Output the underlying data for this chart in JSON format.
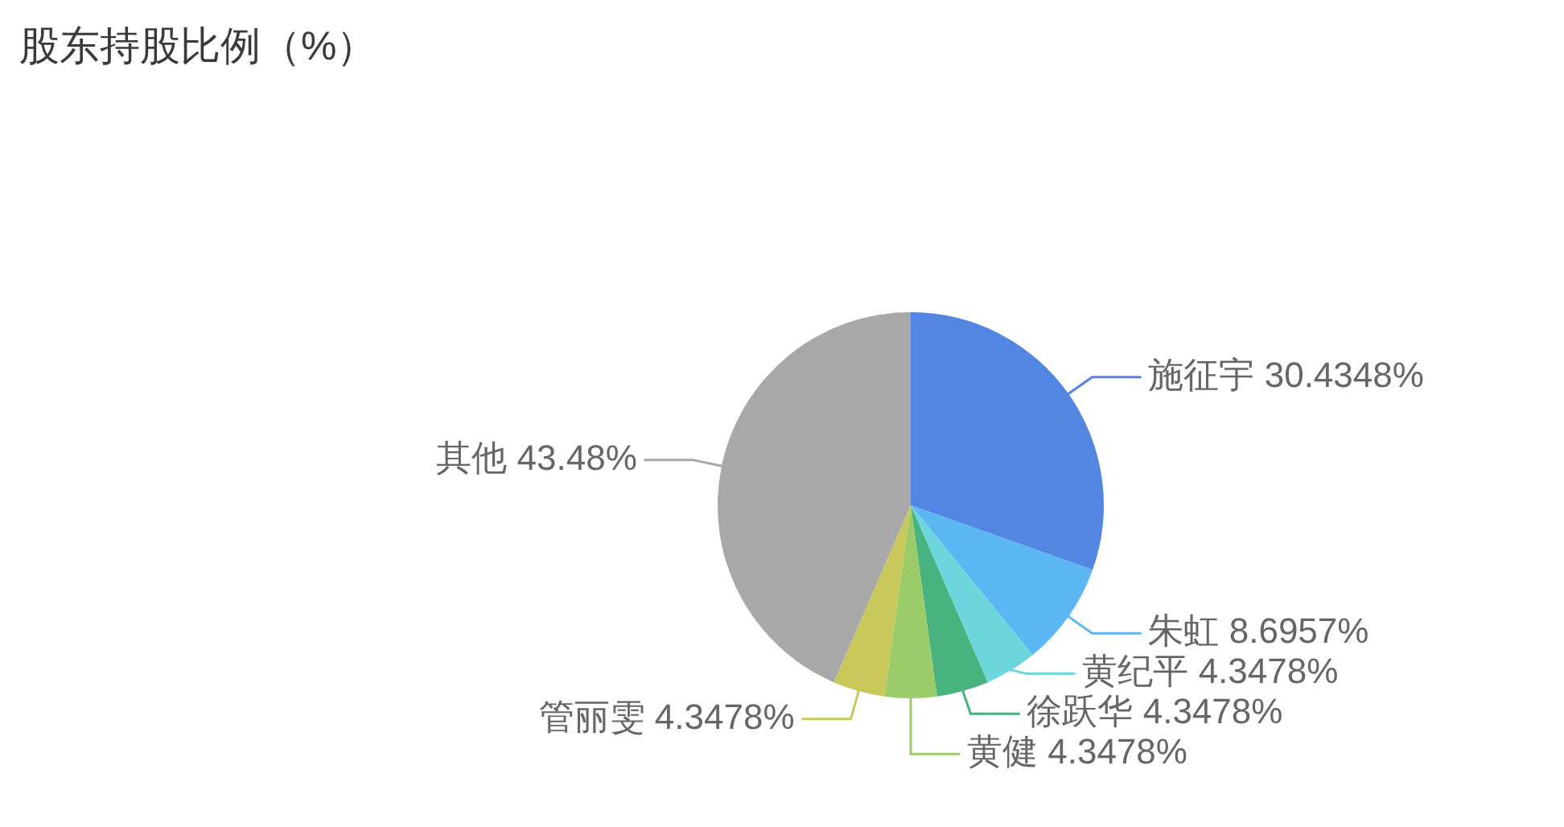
{
  "chart_data": {
    "type": "pie",
    "title": "股东持股比例（%）",
    "categories": [
      "施征宇",
      "朱虹",
      "黄纪平",
      "徐跃华",
      "黄健",
      "管丽雯",
      "其他"
    ],
    "values": [
      30.4348,
      8.6957,
      4.3478,
      4.3478,
      4.3478,
      4.3478,
      43.48
    ],
    "colors": [
      "#5385e2",
      "#5bb6f1",
      "#6cd6dc",
      "#49b37f",
      "#9ccc6a",
      "#c9c85b",
      "#a8a8a8"
    ],
    "value_labels": [
      "30.4348%",
      "8.6957%",
      "4.3478%",
      "4.3478%",
      "4.3478%",
      "4.3478%",
      "43.48%"
    ]
  }
}
